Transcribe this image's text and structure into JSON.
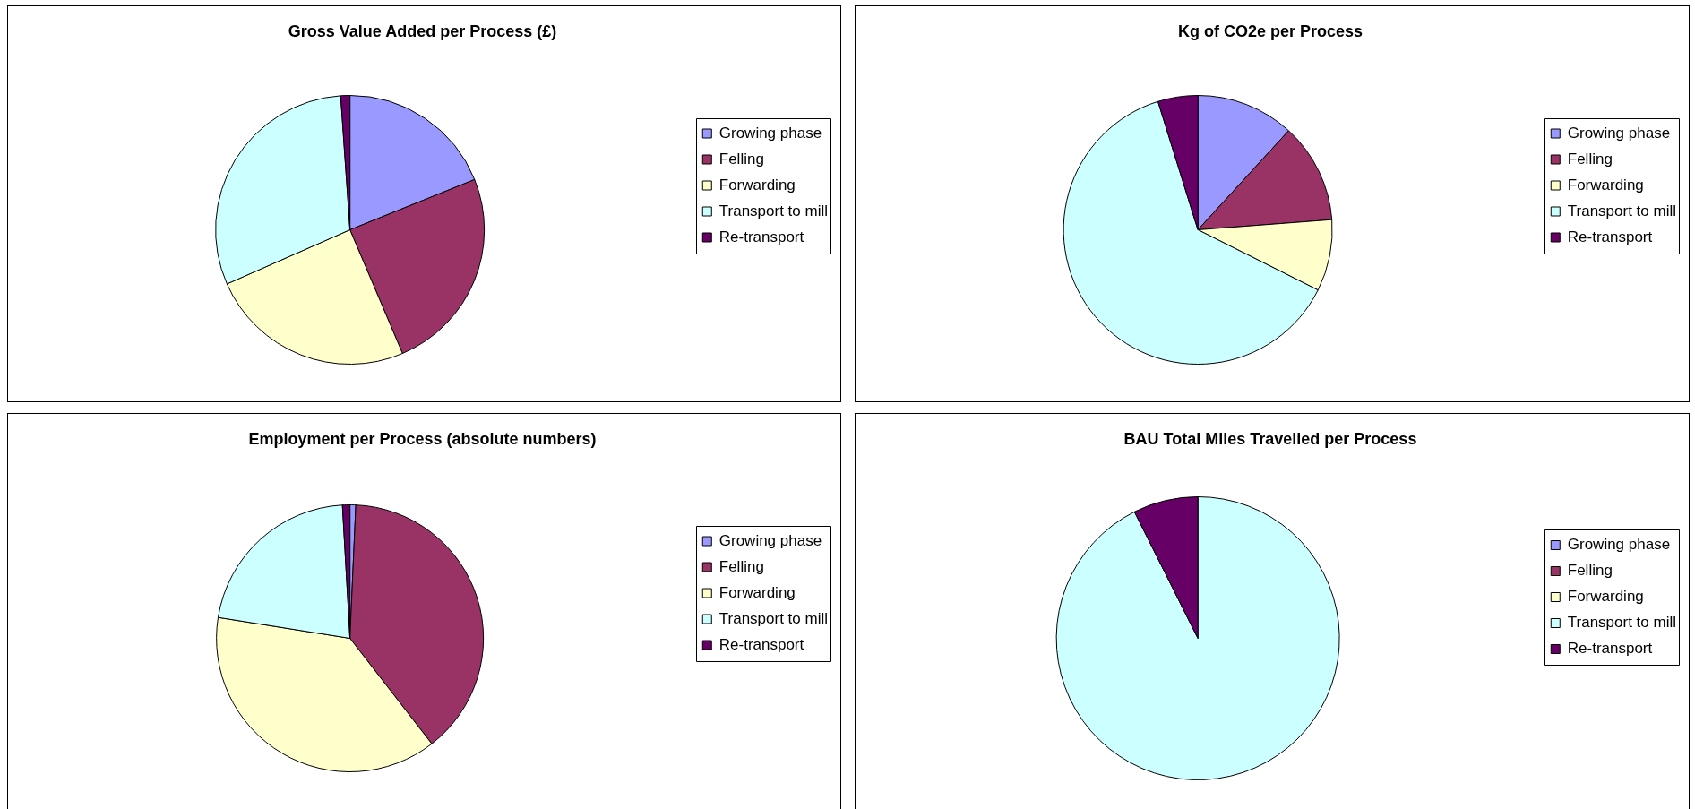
{
  "chart_data": [
    {
      "type": "pie",
      "title": "Gross Value Added per Process (£)",
      "categories": [
        "Growing phase",
        "Felling",
        "Forwarding",
        "Transport to mill",
        "Re-transport"
      ],
      "values": [
        18.9,
        24.7,
        24.8,
        30.5,
        1.1
      ],
      "colors": [
        "#9999ff",
        "#993366",
        "#ffffcc",
        "#ccffff",
        "#660066"
      ],
      "legend": "right"
    },
    {
      "type": "pie",
      "title": "Kg of CO2e per Process",
      "categories": [
        "Growing phase",
        "Felling",
        "Forwarding",
        "Transport to mill",
        "Re-transport"
      ],
      "values": [
        11.8,
        12.0,
        8.6,
        62.8,
        4.8
      ],
      "colors": [
        "#9999ff",
        "#993366",
        "#ffffcc",
        "#ccffff",
        "#660066"
      ],
      "legend": "right"
    },
    {
      "type": "pie",
      "title": "Employment per Process (absolute numbers)",
      "categories": [
        "Growing phase",
        "Felling",
        "Forwarding",
        "Transport to mill",
        "Re-transport"
      ],
      "values": [
        0.7,
        38.8,
        38.0,
        21.6,
        0.9
      ],
      "colors": [
        "#9999ff",
        "#993366",
        "#ffffcc",
        "#ccffff",
        "#660066"
      ],
      "legend": "right"
    },
    {
      "type": "pie",
      "title": "BAU Total Miles Travelled per Process",
      "categories": [
        "Growing phase",
        "Felling",
        "Forwarding",
        "Transport to mill",
        "Re-transport"
      ],
      "values": [
        0,
        0,
        0,
        92.6,
        7.4
      ],
      "colors": [
        "#9999ff",
        "#993366",
        "#ffffcc",
        "#ccffff",
        "#660066"
      ],
      "legend": "right"
    }
  ]
}
